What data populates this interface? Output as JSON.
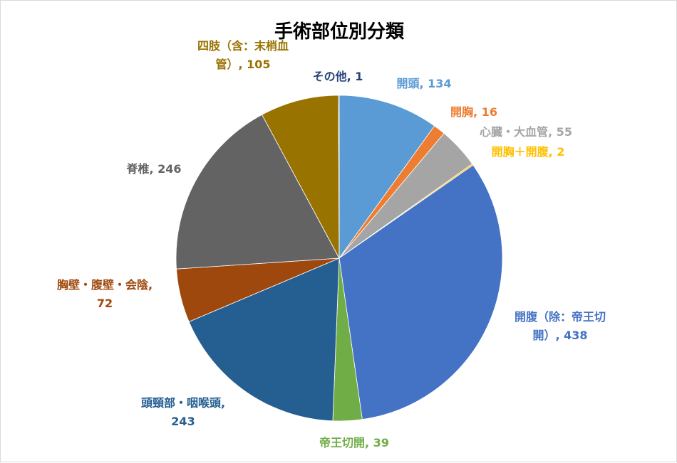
{
  "chart_data": {
    "type": "pie",
    "title": "手術部位別分類",
    "start_angle_deg": 0,
    "direction": "clockwise",
    "slices": [
      {
        "name": "開頭",
        "value": 134,
        "color": "#5B9BD5",
        "label": [
          "開頭, 134"
        ]
      },
      {
        "name": "開胸",
        "value": 16,
        "color": "#ED7D31",
        "label": [
          "開胸, 16"
        ]
      },
      {
        "name": "心臓・大血管",
        "value": 55,
        "color": "#A5A5A5",
        "label": [
          "心臓・大血管, 55"
        ]
      },
      {
        "name": "開胸＋開腹",
        "value": 2,
        "color": "#FFC000",
        "label": [
          "開胸＋開腹, 2"
        ]
      },
      {
        "name": "開腹（除：帝王切開）",
        "value": 438,
        "color": "#4472C4",
        "label": [
          "開腹（除：帝王切",
          "開）, 438"
        ]
      },
      {
        "name": "帝王切開",
        "value": 39,
        "color": "#70AD47",
        "label": [
          "帝王切開, 39"
        ]
      },
      {
        "name": "頭頸部・咽喉頭",
        "value": 243,
        "color": "#255E91",
        "label": [
          "頭頸部・咽喉頭,",
          "243"
        ]
      },
      {
        "name": "胸壁・腹壁・会陰",
        "value": 72,
        "color": "#9E480E",
        "label": [
          "胸壁・腹壁・会陰,",
          "72"
        ]
      },
      {
        "name": "脊椎",
        "value": 246,
        "color": "#636363",
        "label": [
          "脊椎, 246"
        ]
      },
      {
        "name": "四肢（含：末梢血管）",
        "value": 105,
        "color": "#997300",
        "label": [
          "四肢（含：末梢血",
          "管）, 105"
        ]
      },
      {
        "name": "その他",
        "value": 1,
        "color": "#264478",
        "label": [
          "その他, 1"
        ]
      }
    ]
  }
}
